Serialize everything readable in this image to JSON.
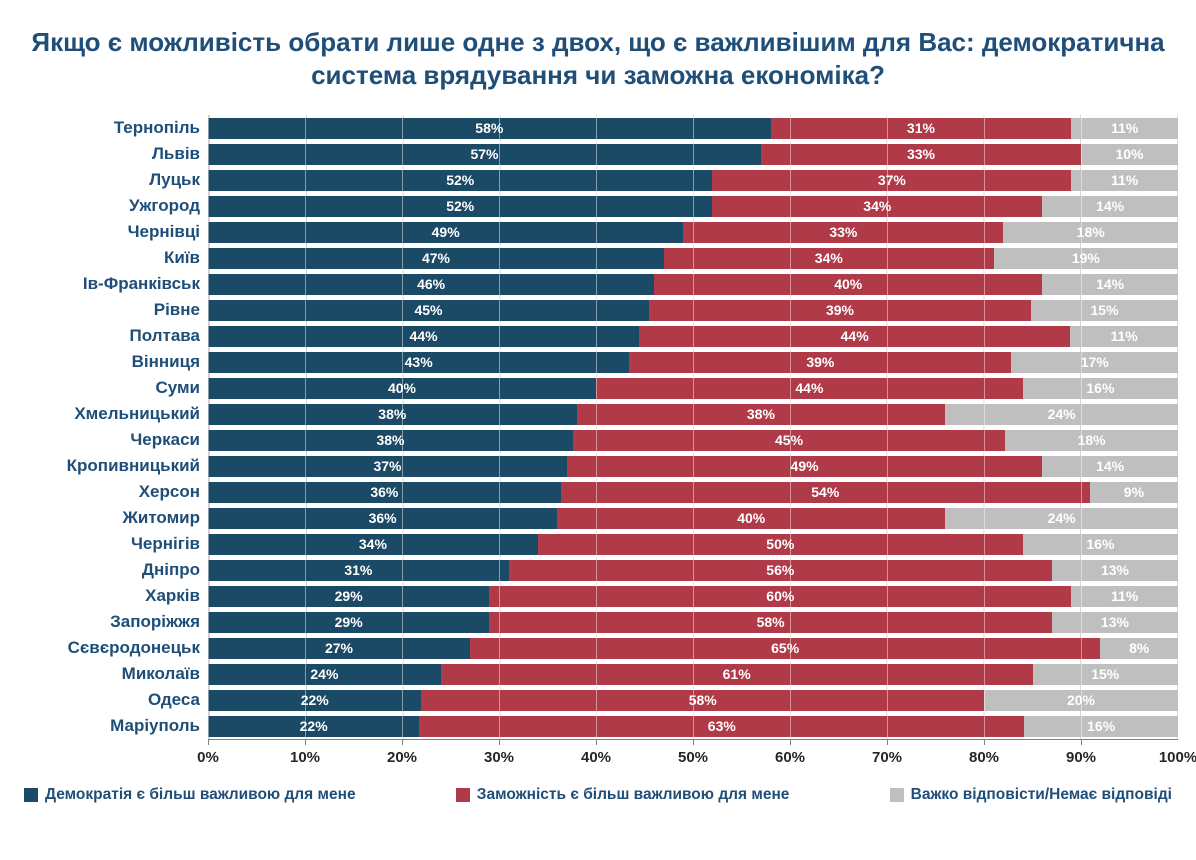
{
  "chart_data": {
    "type": "bar",
    "stacked": true,
    "orientation": "horizontal",
    "title": "Якщо є можливість обрати лише одне з двох, що є важливішим для Вас: демократична система врядування чи заможна економіка?",
    "categories": [
      "Тернопіль",
      "Львів",
      "Луцьк",
      "Ужгород",
      "Чернівці",
      "Київ",
      "Ів-Франківськ",
      "Рівне",
      "Полтава",
      "Вінниця",
      "Суми",
      "Хмельницький",
      "Черкаси",
      "Кропивницький",
      "Херсон",
      "Житомир",
      "Чернігів",
      "Дніпро",
      "Харків",
      "Запоріжжя",
      "Сєвєродонецьк",
      "Миколаїв",
      "Одеса",
      "Маріуполь"
    ],
    "series": [
      {
        "name": "Демократія є більш важливою для мене",
        "color": "#1B4A66",
        "values": [
          58,
          57,
          52,
          52,
          49,
          47,
          46,
          45,
          44,
          43,
          40,
          38,
          38,
          37,
          36,
          36,
          34,
          31,
          29,
          29,
          27,
          24,
          22,
          22
        ]
      },
      {
        "name": "Заможність є більш важливою для мене",
        "color": "#B03A48",
        "values": [
          31,
          33,
          37,
          34,
          33,
          34,
          40,
          39,
          44,
          39,
          44,
          38,
          45,
          49,
          54,
          40,
          50,
          56,
          60,
          58,
          65,
          61,
          58,
          63
        ]
      },
      {
        "name": "Важко відповісти/Немає відповіді",
        "color": "#BFBFBF",
        "values": [
          11,
          10,
          11,
          14,
          18,
          19,
          14,
          15,
          11,
          17,
          16,
          24,
          18,
          14,
          9,
          24,
          16,
          13,
          11,
          13,
          8,
          15,
          20,
          16
        ]
      }
    ],
    "value_suffix": "%",
    "x_ticks": [
      "0%",
      "10%",
      "20%",
      "30%",
      "40%",
      "50%",
      "60%",
      "70%",
      "80%",
      "90%",
      "100%"
    ],
    "xlim": [
      0,
      100
    ],
    "grid": true,
    "legend_position": "bottom"
  }
}
